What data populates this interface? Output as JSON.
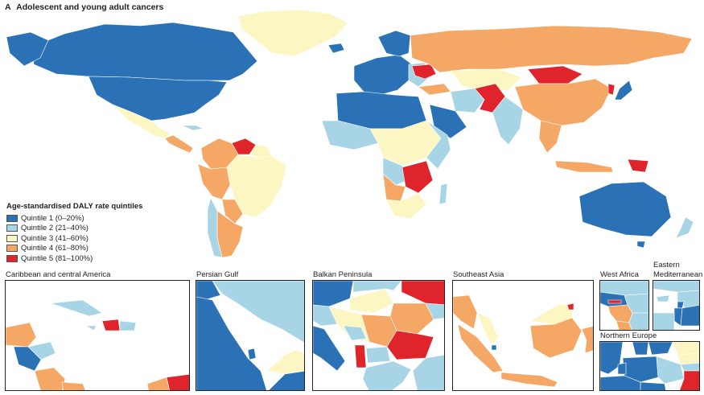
{
  "panel": {
    "letter": "A",
    "title": "Adolescent and young adult cancers"
  },
  "colors": {
    "q1": "#2a72b5",
    "q2": "#a8d5e6",
    "q3": "#fbf6c2",
    "q4": "#f5a765",
    "q5": "#e0242b",
    "border": "#ffffff",
    "frame": "#222222"
  },
  "legend": {
    "title": "Age-standardised DALY rate quintiles",
    "items": [
      {
        "label": "Quintile 1 (0–20%)",
        "color": "#2a72b5"
      },
      {
        "label": "Quintile 2 (21–40%)",
        "color": "#a8d5e6"
      },
      {
        "label": "Quintile 3 (41–60%)",
        "color": "#fbf6c2"
      },
      {
        "label": "Quintile 4 (61–80%)",
        "color": "#f5a765"
      },
      {
        "label": "Quintile 5 (81–100%)",
        "color": "#e0242b"
      }
    ]
  },
  "insets": {
    "caribbean": "Caribbean and central America",
    "persian_gulf": "Persian Gulf",
    "balkan": "Balkan Peninsula",
    "southeast_asia": "Southeast Asia",
    "west_africa": "West Africa",
    "eastern_med_line1": "Eastern",
    "eastern_med_line2": "Mediterranean",
    "northern_europe": "Northern Europe"
  }
}
